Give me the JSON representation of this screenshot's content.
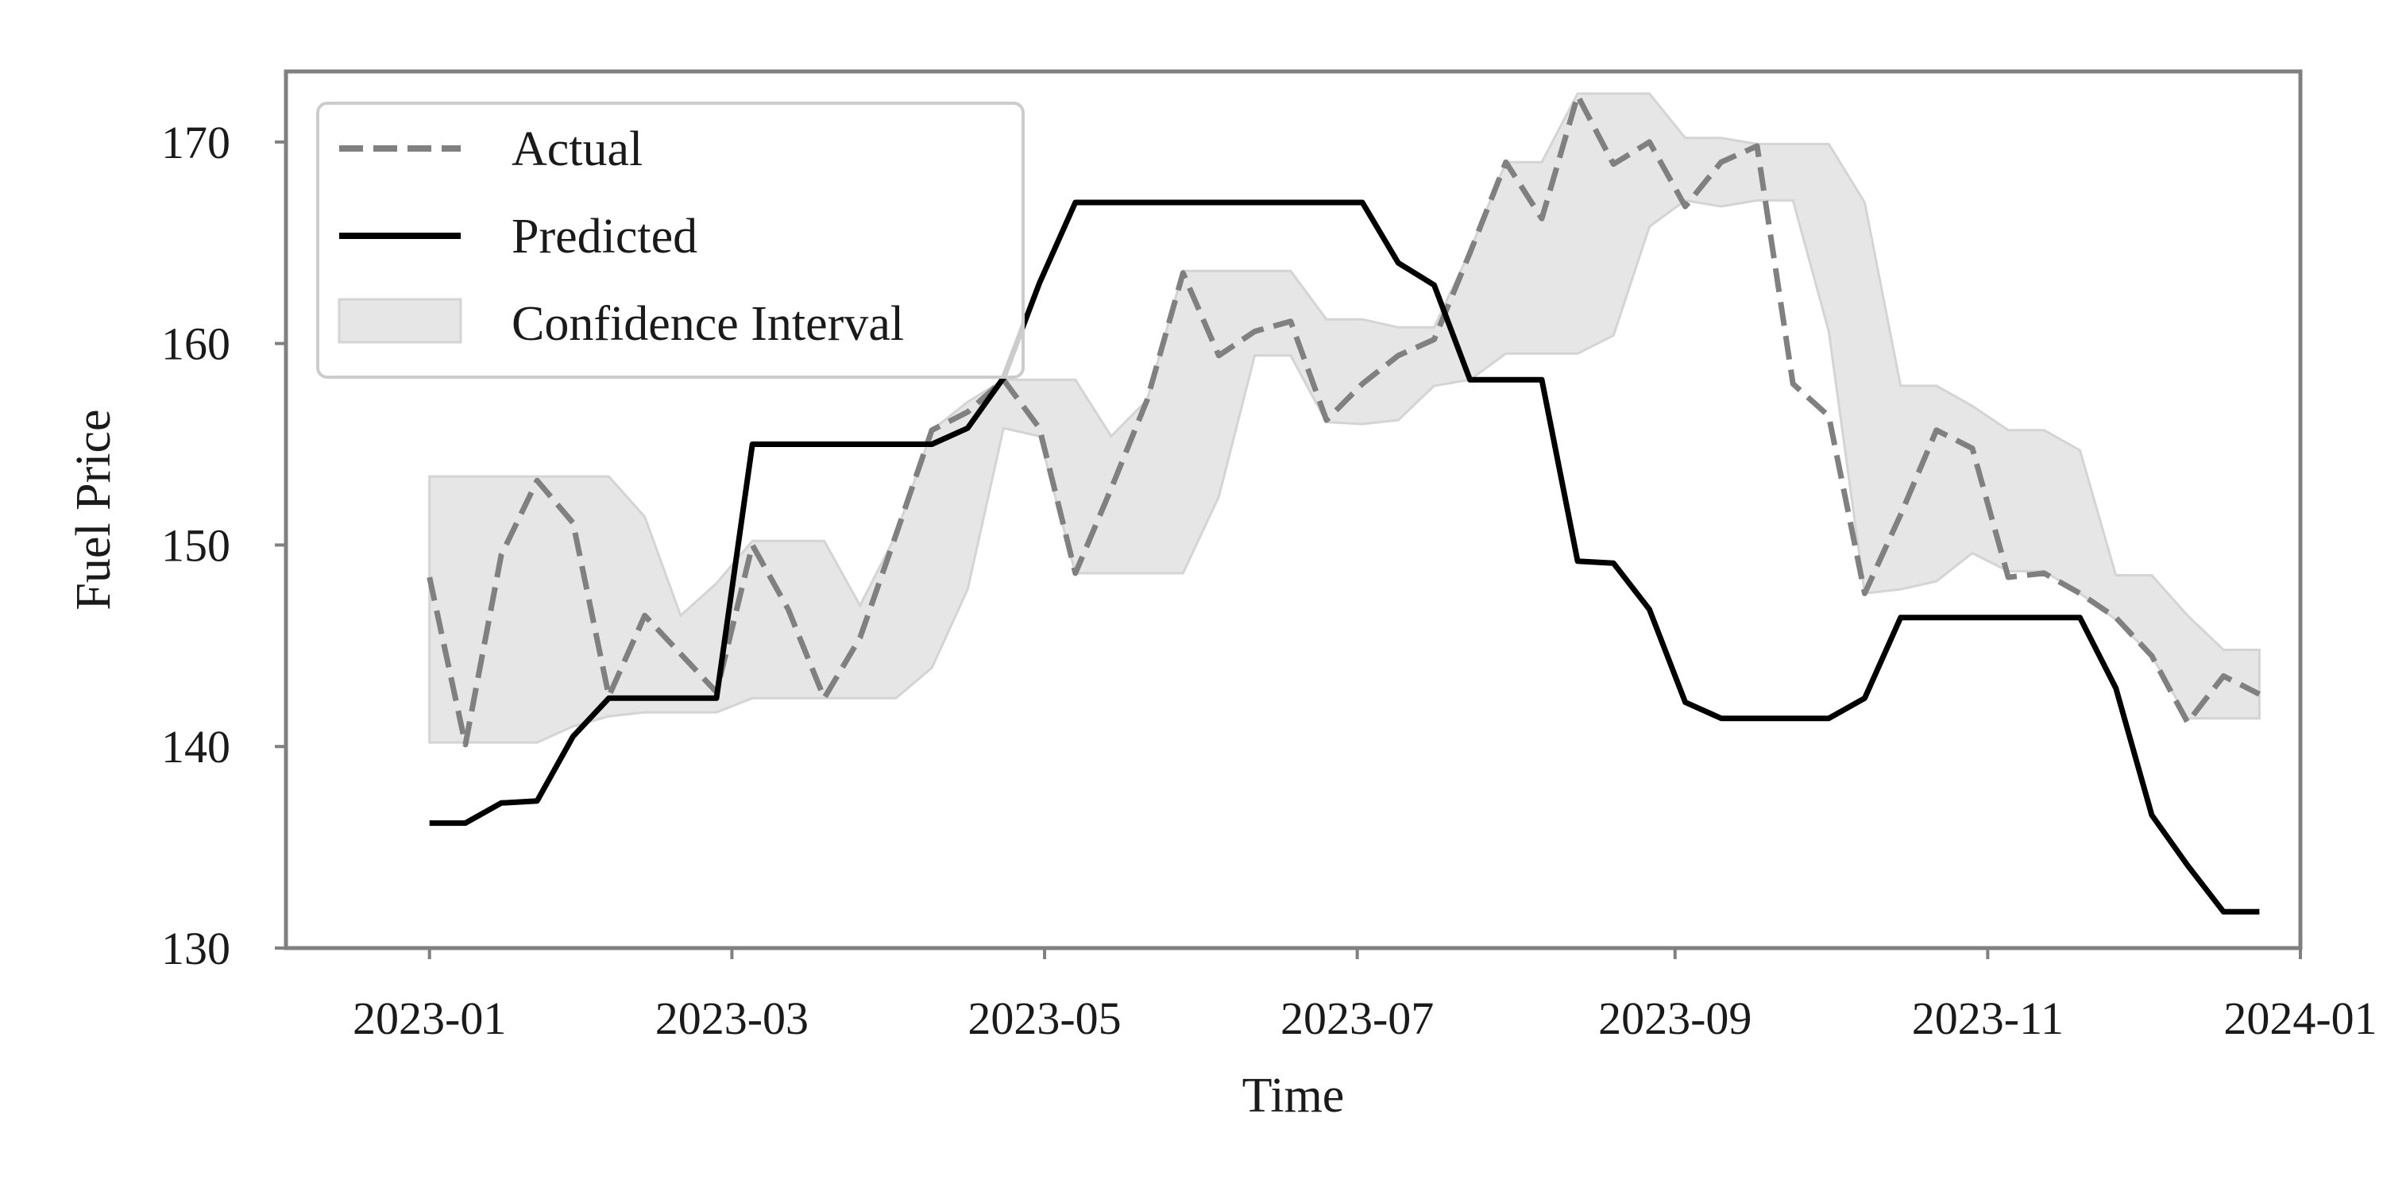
{
  "chart_data": {
    "type": "line",
    "title": "",
    "xlabel": "Time",
    "ylabel": "Fuel Price",
    "xlim": [
      "2022-12-04",
      "2024-01-01"
    ],
    "ylim": [
      130,
      173.5
    ],
    "x_ticks": [
      "2023-01",
      "2023-03",
      "2023-05",
      "2023-07",
      "2023-09",
      "2023-11",
      "2024-01"
    ],
    "y_ticks": [
      "130",
      "140",
      "150",
      "160",
      "170"
    ],
    "grid": false,
    "legend_position": "top-left",
    "dates": [
      "2023-01-01",
      "2023-01-08",
      "2023-01-15",
      "2023-01-22",
      "2023-01-29",
      "2023-02-05",
      "2023-02-12",
      "2023-02-19",
      "2023-02-26",
      "2023-03-05",
      "2023-03-12",
      "2023-03-19",
      "2023-03-26",
      "2023-04-02",
      "2023-04-09",
      "2023-04-16",
      "2023-04-23",
      "2023-04-30",
      "2023-05-07",
      "2023-05-14",
      "2023-05-21",
      "2023-05-28",
      "2023-06-04",
      "2023-06-11",
      "2023-06-18",
      "2023-06-25",
      "2023-07-02",
      "2023-07-09",
      "2023-07-16",
      "2023-07-23",
      "2023-07-30",
      "2023-08-06",
      "2023-08-13",
      "2023-08-20",
      "2023-08-27",
      "2023-09-03",
      "2023-09-10",
      "2023-09-17",
      "2023-09-24",
      "2023-10-01",
      "2023-10-08",
      "2023-10-15",
      "2023-10-22",
      "2023-10-29",
      "2023-11-05",
      "2023-11-12",
      "2023-11-19",
      "2023-11-26",
      "2023-12-03",
      "2023-12-10",
      "2023-12-17",
      "2023-12-24"
    ],
    "series": [
      {
        "name": "Actual",
        "style": "dashed",
        "color": "#808080",
        "values": [
          148.4,
          140.1,
          149.5,
          153.2,
          151.1,
          142.5,
          146.5,
          144.6,
          142.7,
          150.0,
          146.8,
          142.4,
          145.4,
          150.5,
          155.7,
          156.6,
          158.2,
          155.8,
          148.6,
          152.8,
          157.2,
          163.5,
          159.4,
          160.6,
          161.1,
          156.2,
          158.0,
          159.4,
          160.2,
          164.5,
          169.0,
          166.2,
          172.3,
          168.9,
          170.0,
          166.8,
          169.0,
          169.8,
          158.0,
          156.4,
          147.6,
          151.5,
          155.7,
          154.8,
          148.4,
          148.6,
          147.6,
          146.4,
          144.5,
          141.2,
          143.5,
          142.6
        ]
      },
      {
        "name": "Predicted",
        "style": "solid",
        "color": "#000000",
        "values": [
          136.2,
          136.2,
          137.2,
          137.3,
          140.5,
          142.4,
          142.4,
          142.4,
          142.4,
          155.0,
          155.0,
          155.0,
          155.0,
          155.0,
          155.0,
          155.8,
          158.3,
          163.0,
          167.0,
          167.0,
          167.0,
          167.0,
          167.0,
          167.0,
          167.0,
          167.0,
          167.0,
          164.0,
          162.9,
          158.2,
          158.2,
          158.2,
          149.2,
          149.1,
          146.8,
          142.2,
          141.4,
          141.4,
          141.4,
          141.4,
          142.4,
          146.4,
          146.4,
          146.4,
          146.4,
          146.4,
          146.4,
          142.9,
          136.6,
          134.1,
          131.8,
          131.8
        ]
      }
    ],
    "confidence_interval": {
      "name": "Confidence Interval",
      "color": "#e6e6e6",
      "lower": [
        140.2,
        140.2,
        140.2,
        140.2,
        141.0,
        141.5,
        141.7,
        141.7,
        141.7,
        142.4,
        142.4,
        142.4,
        142.4,
        142.4,
        143.9,
        147.8,
        155.8,
        155.4,
        148.6,
        148.6,
        148.6,
        148.6,
        152.4,
        159.4,
        159.4,
        156.1,
        156.0,
        156.2,
        157.9,
        158.2,
        159.5,
        159.5,
        159.5,
        160.4,
        165.8,
        167.1,
        166.8,
        167.1,
        167.1,
        160.6,
        147.6,
        147.8,
        148.2,
        149.6,
        148.7,
        148.7,
        147.6,
        146.3,
        144.5,
        141.4,
        141.4,
        141.4
      ],
      "upper": [
        153.4,
        153.4,
        153.4,
        153.4,
        153.4,
        153.4,
        151.4,
        146.5,
        148.1,
        150.2,
        150.2,
        150.2,
        147.0,
        150.5,
        155.7,
        157.1,
        158.2,
        158.2,
        158.2,
        155.4,
        157.2,
        163.6,
        163.6,
        163.6,
        163.6,
        161.2,
        161.2,
        160.8,
        160.8,
        164.6,
        169.0,
        169.0,
        172.4,
        172.4,
        172.4,
        170.2,
        170.2,
        169.9,
        169.9,
        169.9,
        167.0,
        157.9,
        157.9,
        156.9,
        155.7,
        155.7,
        154.7,
        148.5,
        148.5,
        146.5,
        144.8,
        144.8
      ]
    }
  },
  "legend": {
    "actual_label": "Actual",
    "predicted_label": "Predicted",
    "ci_label": "Confidence Interval"
  }
}
